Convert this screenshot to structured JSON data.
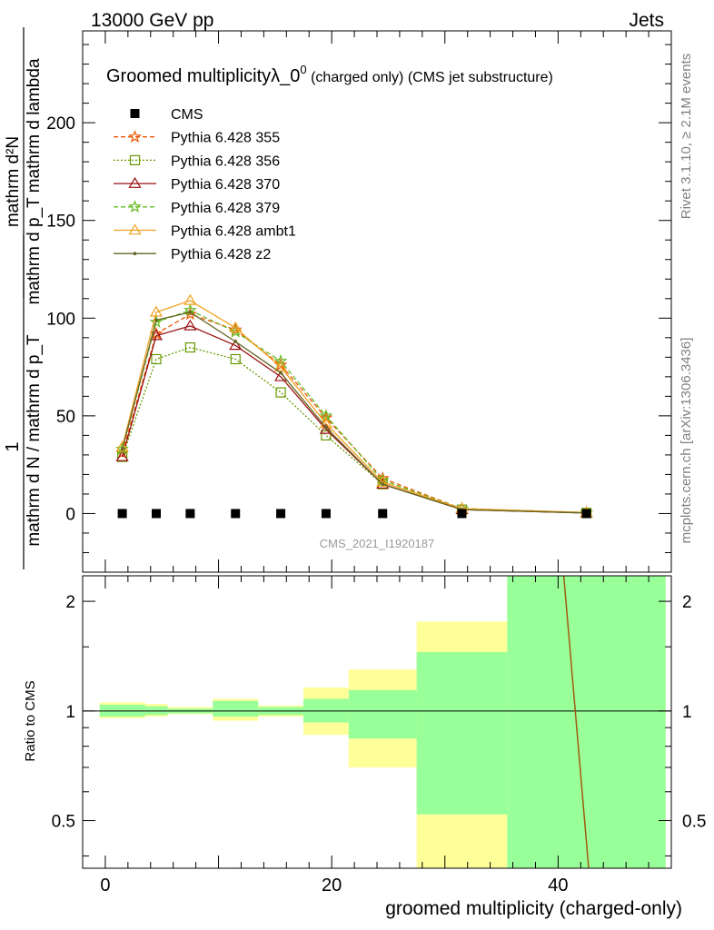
{
  "header": {
    "energy_label": "13000 GeV pp",
    "process_label": "Jets",
    "title_main": "Groomed multiplicityλ_0",
    "title_sup": "0",
    "title_tail": " (charged only) (CMS jet substructure)",
    "analysis_tag": "CMS_2021_I1920187",
    "side_rivet": "Rivet 3.1.10, ≥ 2.1M events",
    "side_mcplots": "mcplots.cern.ch [arXiv:1306.3436]"
  },
  "axes": {
    "ylabel_top": "mathrm d²N",
    "ylabel_bottom": "mathrm d p_T mathrm d lambda",
    "ylabel_prefix_num": "1",
    "ylabel_prefix_den": "mathrm d N / mathrm d p_T",
    "ratio_ylabel": "Ratio to CMS",
    "xlabel": "groomed multiplicity (charged-only)",
    "main_yticks": [
      "0",
      "50",
      "100",
      "150",
      "200"
    ],
    "ratio_yticks": [
      "0.5",
      "1",
      "2"
    ],
    "xticks": [
      "0",
      "20",
      "40"
    ]
  },
  "colors": {
    "green_band": "#99ff99",
    "yellow_band": "#ffff99",
    "cms": "#000000"
  },
  "chart_data": {
    "type": "line",
    "xlim": [
      -2,
      50
    ],
    "ylim": [
      -30,
      247
    ],
    "ratio_ylim": [
      0.37,
      2.35
    ],
    "bin_edges": [
      -0.5,
      3.5,
      5.5,
      9.5,
      13.5,
      17.5,
      21.5,
      27.5,
      35.5,
      49.5
    ],
    "x": [
      1.5,
      4.5,
      7.5,
      11.5,
      15.5,
      19.5,
      24.5,
      31.5,
      42.5
    ],
    "cms": {
      "name": "CMS",
      "values": [
        0,
        0,
        0,
        0,
        0,
        0,
        0,
        0,
        0
      ],
      "ratio_green": [
        [
          0.965,
          1.04
        ],
        [
          0.975,
          1.03
        ],
        [
          0.985,
          1.015
        ],
        [
          0.965,
          1.065
        ],
        [
          0.975,
          1.025
        ],
        [
          0.93,
          1.08
        ],
        [
          0.84,
          1.14
        ],
        [
          0.52,
          1.45
        ],
        [
          0.37,
          2.35
        ]
      ],
      "ratio_yellow": [
        [
          0.955,
          1.055
        ],
        [
          0.965,
          1.045
        ],
        [
          0.98,
          1.025
        ],
        [
          0.94,
          1.08
        ],
        [
          0.965,
          1.035
        ],
        [
          0.86,
          1.16
        ],
        [
          0.7,
          1.3
        ],
        [
          0.37,
          1.76
        ],
        [
          0.37,
          2.35
        ]
      ]
    },
    "series": [
      {
        "name": "Pythia 6.428 355",
        "color": "#ee5500",
        "dash": "5,3",
        "marker": "star",
        "values": [
          31,
          92,
          102,
          94,
          76,
          49,
          18,
          2.5,
          0.5
        ]
      },
      {
        "name": "Pythia 6.428 356",
        "color": "#669900",
        "dash": "2,2",
        "marker": "square",
        "values": [
          29,
          79,
          85,
          79,
          62,
          40,
          15,
          2,
          0.3
        ]
      },
      {
        "name": "Pythia 6.428 370",
        "color": "#991111",
        "dash": "",
        "marker": "triangle",
        "values": [
          29,
          91,
          96,
          86,
          70,
          43,
          15,
          2,
          0.3
        ]
      },
      {
        "name": "Pythia 6.428 379",
        "color": "#66bb22",
        "dash": "5,3",
        "marker": "star",
        "values": [
          33,
          98,
          104,
          93,
          78,
          50,
          17,
          2.5,
          0.5
        ]
      },
      {
        "name": "Pythia 6.428 ambt1",
        "color": "#f0a020",
        "dash": "",
        "marker": "triangle",
        "values": [
          34,
          103,
          109,
          95,
          75,
          46,
          16,
          2.5,
          0.5
        ]
      },
      {
        "name": "Pythia 6.428 z2",
        "color": "#666622",
        "dash": "",
        "marker": "dot",
        "values": [
          33,
          99,
          103,
          88,
          72,
          44,
          15,
          2,
          0.3
        ]
      }
    ],
    "ratio_line_x": [
      40.5,
      42.7
    ]
  }
}
